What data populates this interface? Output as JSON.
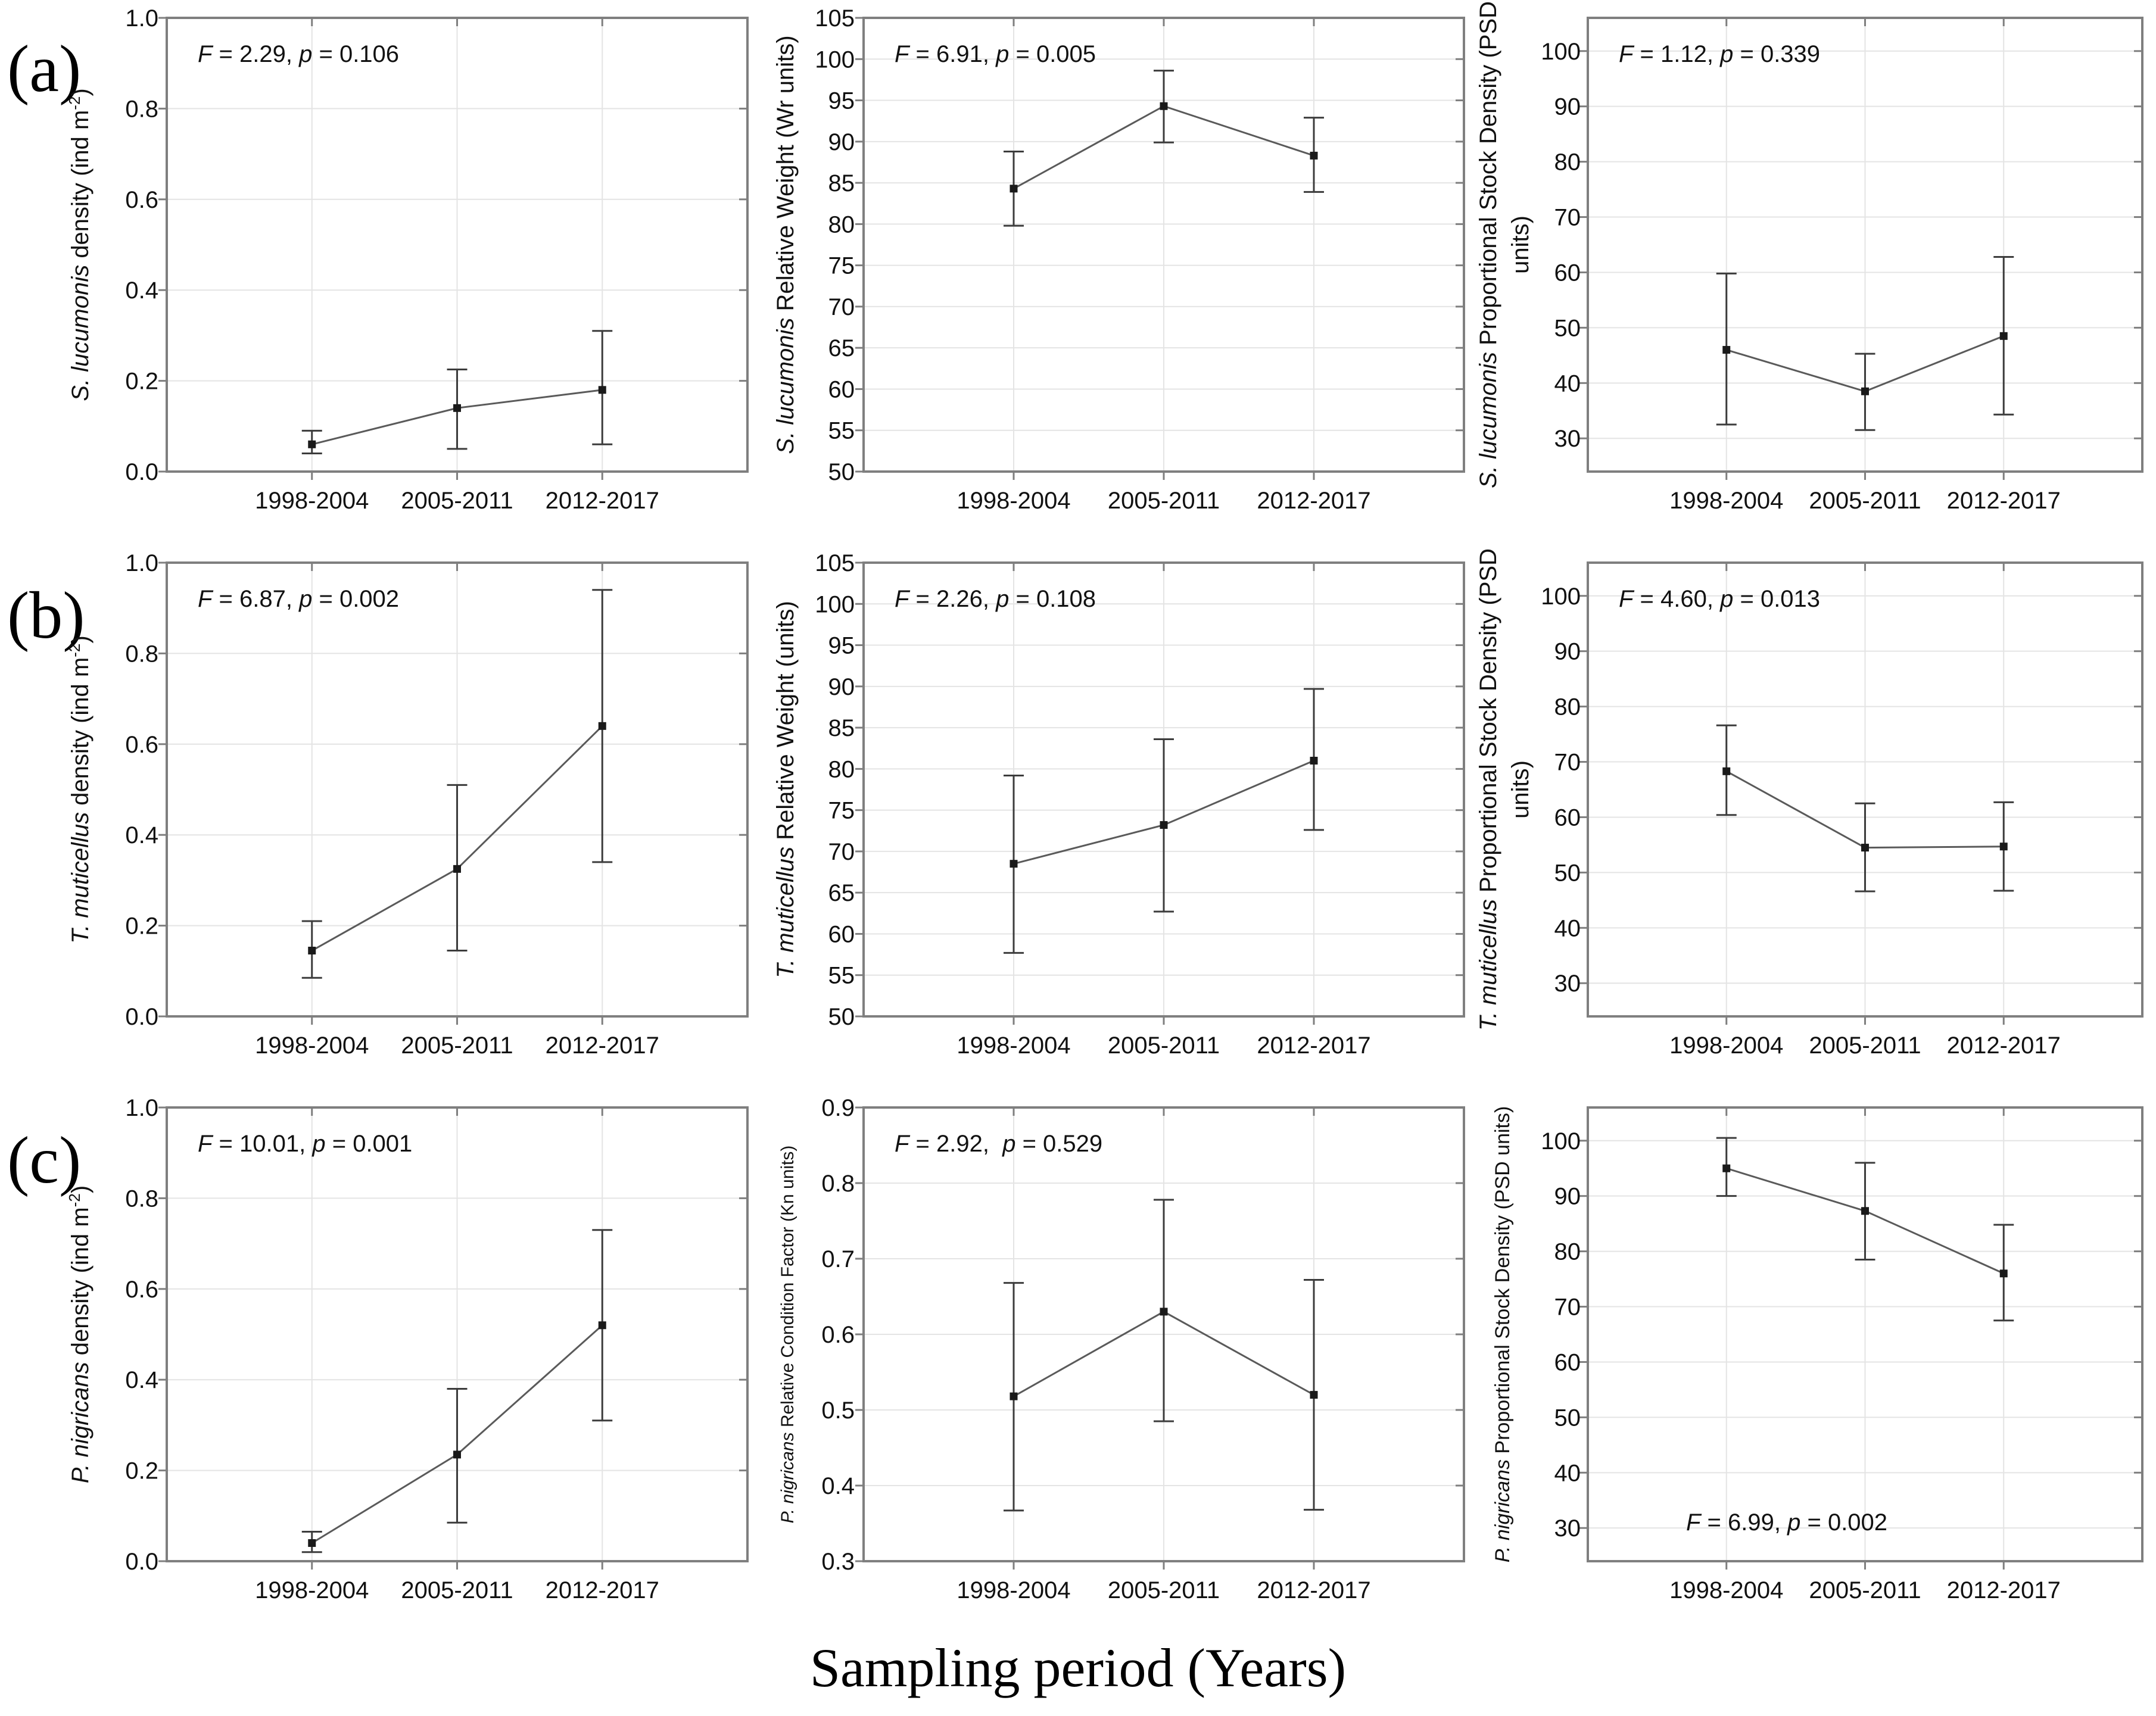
{
  "figure": {
    "row_labels": [
      "(a)",
      "(b)",
      "(c)"
    ],
    "bottom_axis_title": "Sampling period (Years)",
    "categories": [
      "1998-2004",
      "2005-2011",
      "2012-2017"
    ],
    "colors": {
      "background": "#ffffff",
      "frame": "#7f7f7f",
      "grid": "#e4e4e4",
      "series_line": "#5a5a5a",
      "error_bar": "#3c3c3c",
      "marker": "#1a1a1a",
      "text": "#111111"
    }
  },
  "chart_data": [
    {
      "id": "a1",
      "type": "line",
      "categories": [
        "1998-2004",
        "2005-2011",
        "2012-2017"
      ],
      "ylabel_segments": [
        {
          "t": "S. lucumonis",
          "italic": true
        },
        {
          "t": " density (ind m"
        },
        {
          "t": "-2",
          "sup": true
        },
        {
          "t": ")"
        }
      ],
      "annotation": {
        "f_label": "F",
        "f_value": "2.29",
        "p_label": "p",
        "p_value": "0.106",
        "separator": ", ",
        "position": "top-left"
      },
      "yaxis": {
        "min": 0,
        "max": 1,
        "ticks": [
          0,
          0.2,
          0.4,
          0.6,
          0.8,
          1
        ],
        "decimals": 1
      },
      "series": {
        "mean": [
          0.06,
          0.14,
          0.18
        ],
        "err_low": [
          0.04,
          0.05,
          0.06
        ],
        "err_high": [
          0.09,
          0.225,
          0.31
        ]
      }
    },
    {
      "id": "a2",
      "type": "line",
      "categories": [
        "1998-2004",
        "2005-2011",
        "2012-2017"
      ],
      "ylabel_segments": [
        {
          "t": "S. lucumonis",
          "italic": true
        },
        {
          "t": " Relative Weight (Wr units)"
        }
      ],
      "annotation": {
        "f_label": "F",
        "f_value": "6.91",
        "p_label": "p",
        "p_value": "0.005",
        "separator": ", ",
        "position": "top-left"
      },
      "yaxis": {
        "min": 50,
        "max": 105,
        "ticks": [
          50,
          55,
          60,
          65,
          70,
          75,
          80,
          85,
          90,
          95,
          100,
          105
        ],
        "decimals": 0
      },
      "series": {
        "mean": [
          84.3,
          94.3,
          88.3
        ],
        "err_low": [
          79.8,
          89.9,
          83.9
        ],
        "err_high": [
          88.8,
          98.6,
          92.9
        ]
      }
    },
    {
      "id": "a3",
      "type": "line",
      "categories": [
        "1998-2004",
        "2005-2011",
        "2012-2017"
      ],
      "ylabel_segments": [
        {
          "t": "S. lucumonis",
          "italic": true
        },
        {
          "t": " Proportional Stock Density (PSD"
        }
      ],
      "ylabel_line2": "units)",
      "annotation": {
        "f_label": "F",
        "f_value": "1.12",
        "p_label": "p",
        "p_value": "0.339",
        "separator": ", ",
        "position": "top-left"
      },
      "yaxis": {
        "min": 24,
        "max": 106,
        "ticks": [
          30,
          40,
          50,
          60,
          70,
          80,
          90,
          100
        ],
        "decimals": 0
      },
      "series": {
        "mean": [
          46,
          38.5,
          48.5
        ],
        "err_low": [
          32.5,
          31.5,
          34.3
        ],
        "err_high": [
          59.8,
          45.3,
          62.8
        ]
      }
    },
    {
      "id": "b1",
      "type": "line",
      "categories": [
        "1998-2004",
        "2005-2011",
        "2012-2017"
      ],
      "ylabel_segments": [
        {
          "t": "T. muticellus",
          "italic": true
        },
        {
          "t": " density (ind m"
        },
        {
          "t": "-2",
          "sup": true
        },
        {
          "t": ")"
        }
      ],
      "annotation": {
        "f_label": "F",
        "f_value": "6.87",
        "p_label": "p",
        "p_value": "0.002",
        "separator": ", ",
        "position": "top-left"
      },
      "yaxis": {
        "min": 0,
        "max": 1,
        "ticks": [
          0,
          0.2,
          0.4,
          0.6,
          0.8,
          1
        ],
        "decimals": 1
      },
      "series": {
        "mean": [
          0.145,
          0.325,
          0.64
        ],
        "err_low": [
          0.085,
          0.145,
          0.34
        ],
        "err_high": [
          0.21,
          0.51,
          0.94
        ]
      }
    },
    {
      "id": "b2",
      "type": "line",
      "categories": [
        "1998-2004",
        "2005-2011",
        "2012-2017"
      ],
      "ylabel_segments": [
        {
          "t": "T. muticellus",
          "italic": true
        },
        {
          "t": " Relative Weight (units)"
        }
      ],
      "annotation": {
        "f_label": "F",
        "f_value": "2.26",
        "p_label": "p",
        "p_value": "0.108",
        "separator": ", ",
        "position": "top-left"
      },
      "yaxis": {
        "min": 50,
        "max": 105,
        "ticks": [
          50,
          55,
          60,
          65,
          70,
          75,
          80,
          85,
          90,
          95,
          100,
          105
        ],
        "decimals": 0
      },
      "series": {
        "mean": [
          68.5,
          73.2,
          81
        ],
        "err_low": [
          57.7,
          62.7,
          72.6
        ],
        "err_high": [
          79.2,
          83.6,
          89.7
        ]
      }
    },
    {
      "id": "b3",
      "type": "line",
      "categories": [
        "1998-2004",
        "2005-2011",
        "2012-2017"
      ],
      "ylabel_segments": [
        {
          "t": "T. muticellus",
          "italic": true
        },
        {
          "t": " Proportional Stock Density (PSD"
        }
      ],
      "ylabel_line2": "units)",
      "annotation": {
        "f_label": "F",
        "f_value": "4.60",
        "p_label": "p",
        "p_value": "0.013",
        "separator": ", ",
        "position": "top-left"
      },
      "yaxis": {
        "min": 24,
        "max": 106,
        "ticks": [
          30,
          40,
          50,
          60,
          70,
          80,
          90,
          100
        ],
        "decimals": 0
      },
      "series": {
        "mean": [
          68.3,
          54.5,
          54.7
        ],
        "err_low": [
          60.4,
          46.6,
          46.7
        ],
        "err_high": [
          76.6,
          62.5,
          62.7
        ]
      }
    },
    {
      "id": "c1",
      "type": "line",
      "categories": [
        "1998-2004",
        "2005-2011",
        "2012-2017"
      ],
      "ylabel_segments": [
        {
          "t": "P. nigricans",
          "italic": true
        },
        {
          "t": " density (ind m"
        },
        {
          "t": "-2",
          "sup": true
        },
        {
          "t": ")"
        }
      ],
      "annotation": {
        "f_label": "F",
        "f_value": "10.01",
        "p_label": "p",
        "p_value": "0.001",
        "separator": ", ",
        "position": "top-left"
      },
      "yaxis": {
        "min": 0,
        "max": 1,
        "ticks": [
          0,
          0.2,
          0.4,
          0.6,
          0.8,
          1
        ],
        "decimals": 1
      },
      "series": {
        "mean": [
          0.04,
          0.235,
          0.52
        ],
        "err_low": [
          0.02,
          0.085,
          0.31
        ],
        "err_high": [
          0.065,
          0.38,
          0.73
        ]
      }
    },
    {
      "id": "c2",
      "type": "line",
      "categories": [
        "1998-2004",
        "2005-2011",
        "2012-2017"
      ],
      "ylabel_segments": [
        {
          "t": "P. nigricans",
          "italic": true
        },
        {
          "t": " Relative Condition Factor (Kn units)"
        }
      ],
      "annotation": {
        "f_label": "F",
        "f_value": "2.92",
        "p_label": "p",
        "p_value": "0.529",
        "separator": ",  ",
        "position": "top-left"
      },
      "yaxis": {
        "min": 0.3,
        "max": 0.9,
        "ticks": [
          0.3,
          0.4,
          0.5,
          0.6,
          0.7,
          0.8,
          0.9
        ],
        "decimals": 1
      },
      "series": {
        "mean": [
          0.518,
          0.63,
          0.52
        ],
        "err_low": [
          0.367,
          0.485,
          0.368
        ],
        "err_high": [
          0.668,
          0.778,
          0.672
        ]
      }
    },
    {
      "id": "c3",
      "type": "line",
      "categories": [
        "1998-2004",
        "2005-2011",
        "2012-2017"
      ],
      "ylabel_segments": [
        {
          "t": "P. nigricans",
          "italic": true
        },
        {
          "t": " Proportional Stock Density (PSD units)"
        }
      ],
      "annotation": {
        "f_label": "F",
        "f_value": "6.99",
        "p_label": "p",
        "p_value": "0.002",
        "separator": ", ",
        "position": "bottom-left"
      },
      "yaxis": {
        "min": 24,
        "max": 106,
        "ticks": [
          30,
          40,
          50,
          60,
          70,
          80,
          90,
          100
        ],
        "decimals": 0
      },
      "series": {
        "mean": [
          95,
          87.3,
          76
        ],
        "err_low": [
          90,
          78.5,
          67.5
        ],
        "err_high": [
          100.5,
          96,
          84.8
        ]
      }
    }
  ]
}
